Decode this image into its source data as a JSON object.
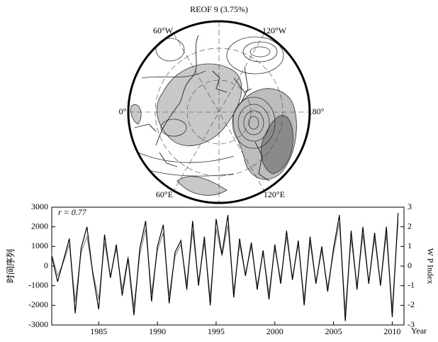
{
  "map": {
    "title": "REOF 9 (3.75%)",
    "labels": [
      "60°W",
      "120°W",
      "0°",
      "180°",
      "60°E",
      "120°E"
    ]
  },
  "chart_data": {
    "type": "line",
    "annotation": "r = 0.77",
    "x_label": "Year",
    "y_label": "时间序列",
    "y2_label": "W P Index",
    "x": [
      1981.0,
      1981.5,
      1982.0,
      1982.5,
      1983.0,
      1983.5,
      1984.0,
      1984.5,
      1985.0,
      1985.5,
      1986.0,
      1986.5,
      1987.0,
      1987.5,
      1988.0,
      1988.5,
      1989.0,
      1989.5,
      1990.0,
      1990.5,
      1991.0,
      1991.5,
      1992.0,
      1992.5,
      1993.0,
      1993.5,
      1994.0,
      1994.5,
      1995.0,
      1995.5,
      1996.0,
      1996.5,
      1997.0,
      1997.5,
      1998.0,
      1998.5,
      1999.0,
      1999.5,
      2000.0,
      2000.5,
      2001.0,
      2001.5,
      2002.0,
      2002.5,
      2003.0,
      2003.5,
      2004.0,
      2004.5,
      2005.0,
      2005.5,
      2006.0,
      2006.5,
      2007.0,
      2007.5,
      2008.0,
      2008.5,
      2009.0,
      2009.5,
      2010.0,
      2010.5
    ],
    "series": [
      {
        "color": "#888888",
        "axis": "y2",
        "values": [
          0.6,
          -0.5,
          0.2,
          1.1,
          -1.8,
          0.7,
          1.5,
          -0.3,
          -1.7,
          1.2,
          -0.5,
          0.9,
          -1.2,
          0.5,
          -2.1,
          0.6,
          1.9,
          -1.4,
          0.8,
          1.7,
          -1.5,
          0.5,
          1.1,
          -0.9,
          1.8,
          -0.8,
          1.2,
          -1.6,
          1.9,
          0.5,
          2.1,
          -1.3,
          1.1,
          -0.4,
          1.0,
          -1.0,
          0.7,
          -1.4,
          0.9,
          -0.7,
          1.5,
          -0.6,
          1.1,
          -1.7,
          1.2,
          -0.8,
          0.8,
          -1.1,
          0.7,
          2.2,
          -2.3,
          1.4,
          -1.0,
          1.6,
          -0.8,
          1.4,
          -0.9,
          1.6,
          -2.2,
          2.3
        ]
      },
      {
        "color": "#000000",
        "values": [
          500,
          -800,
          300,
          1400,
          -2400,
          900,
          2000,
          -400,
          -2200,
          1600,
          -600,
          1100,
          -1500,
          400,
          -2500,
          900,
          2300,
          -1800,
          1000,
          2100,
          -1900,
          700,
          1300,
          -1200,
          2300,
          -1000,
          1500,
          -2000,
          2400,
          600,
          2600,
          -1600,
          1400,
          -500,
          1200,
          -1200,
          800,
          -1700,
          1100,
          -900,
          1800,
          -700,
          1300,
          -2000,
          1500,
          -900,
          1000,
          -1300,
          900,
          2600,
          -2800,
          1800,
          -1200,
          2000,
          -900,
          1700,
          -1000,
          2000,
          -2600,
          2700
        ]
      }
    ],
    "xlim": [
      1981,
      2011
    ],
    "xticks": [
      1985,
      1990,
      1995,
      2000,
      2005,
      2010
    ],
    "ylim": [
      -3000,
      3000
    ],
    "yticks": [
      -3000,
      -2000,
      -1000,
      0,
      1000,
      2000,
      3000
    ],
    "y2lim": [
      -3,
      3
    ],
    "y2ticks": [
      -3,
      -2,
      -1,
      0,
      1,
      2,
      3
    ]
  }
}
